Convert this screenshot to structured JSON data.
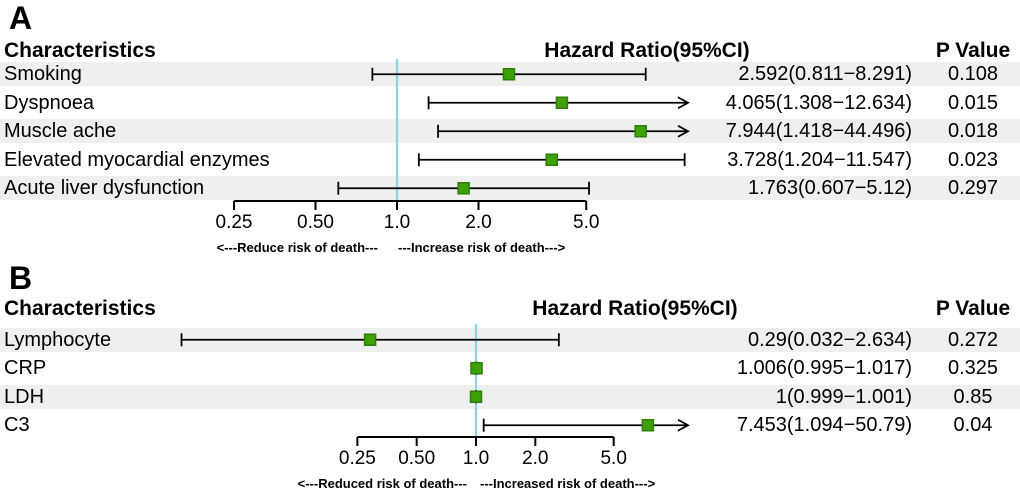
{
  "colors": {
    "marker_fill": "#3fa108",
    "marker_stroke": "#2e7d06",
    "reference_line": "#8ed3e4",
    "stripe": "#efefef",
    "line": "#000000",
    "background": "#ffffff",
    "text": "#000000"
  },
  "panels": [
    {
      "letter": "A",
      "columns": {
        "characteristics": "Characteristics",
        "hazard_ratio": "Hazard Ratio(95%CI)",
        "p_value": "P Value"
      },
      "rows": [
        {
          "name": "Smoking",
          "hr": 2.592,
          "lo": 0.811,
          "hi": 8.291,
          "hr_text": "2.592(0.811−8.291)",
          "p": "0.108"
        },
        {
          "name": "Dyspnoea",
          "hr": 4.065,
          "lo": 1.308,
          "hi": 12.634,
          "hr_text": "4.065(1.308−12.634)",
          "p": "0.015"
        },
        {
          "name": "Muscle ache",
          "hr": 7.944,
          "lo": 1.418,
          "hi": 44.496,
          "hr_text": "7.944(1.418−44.496)",
          "p": "0.018"
        },
        {
          "name": "Elevated myocardial enzymes",
          "hr": 3.728,
          "lo": 1.204,
          "hi": 11.547,
          "hr_text": "3.728(1.204−11.547)",
          "p": "0.023"
        },
        {
          "name": "Acute liver dysfunction",
          "hr": 1.763,
          "lo": 0.607,
          "hi": 5.12,
          "hr_text": "1.763(0.607−5.12)",
          "p": "0.297"
        }
      ],
      "axis": {
        "tick_labels": [
          "0.25",
          "0.50",
          "1.0",
          "2.0",
          "5.0"
        ],
        "tick_values": [
          0.25,
          0.5,
          1,
          2,
          5
        ]
      },
      "footer_left": "<---Reduce risk of death---",
      "footer_right": "---Increase risk of death--->"
    },
    {
      "letter": "B",
      "columns": {
        "characteristics": "Characteristics",
        "hazard_ratio": "Hazard Ratio(95%CI)",
        "p_value": "P Value"
      },
      "rows": [
        {
          "name": "Lymphocyte",
          "hr": 0.29,
          "lo": 0.032,
          "hi": 2.634,
          "hr_text": "0.29(0.032−2.634)",
          "p": "0.272"
        },
        {
          "name": "CRP",
          "hr": 1.006,
          "lo": 0.995,
          "hi": 1.017,
          "hr_text": "1.006(0.995−1.017)",
          "p": "0.325"
        },
        {
          "name": "LDH",
          "hr": 1,
          "lo": 0.999,
          "hi": 1.001,
          "hr_text": "1(0.999−1.001)",
          "p": "0.85"
        },
        {
          "name": "C3",
          "hr": 7.453,
          "lo": 1.094,
          "hi": 50.79,
          "hr_text": "7.453(1.094−50.79)",
          "p": "0.04"
        }
      ],
      "axis": {
        "tick_labels": [
          "0.25",
          "0.50",
          "1.0",
          "2.0",
          "5.0"
        ],
        "tick_values": [
          0.25,
          0.5,
          1,
          2,
          5
        ]
      },
      "footer_left": "<---Reduced risk of death---",
      "footer_right": "---Increased risk of death--->"
    }
  ],
  "chart_data": [
    {
      "type": "scatter",
      "subtype": "forest-plot",
      "title": "A",
      "categories": [
        "Smoking",
        "Dyspnoea",
        "Muscle ache",
        "Elevated myocardial enzymes",
        "Acute liver dysfunction"
      ],
      "series": [
        {
          "name": "Hazard Ratio",
          "values": [
            2.592,
            4.065,
            7.944,
            3.728,
            1.763
          ],
          "ci_lower": [
            0.811,
            1.308,
            1.418,
            1.204,
            0.607
          ],
          "ci_upper": [
            8.291,
            12.634,
            44.496,
            11.547,
            5.12
          ]
        }
      ],
      "p_values": [
        0.108,
        0.015,
        0.018,
        0.023,
        0.297
      ],
      "x_scale": "log",
      "x_ticks": [
        0.25,
        0.5,
        1.0,
        2.0,
        5.0
      ],
      "reference_line": 1.0,
      "xlabel": "<---Reduce risk of death---   ---Increase risk of death--->",
      "legend": "none",
      "grid": false
    },
    {
      "type": "scatter",
      "subtype": "forest-plot",
      "title": "B",
      "categories": [
        "Lymphocyte",
        "CRP",
        "LDH",
        "C3"
      ],
      "series": [
        {
          "name": "Hazard Ratio",
          "values": [
            0.29,
            1.006,
            1,
            7.453
          ],
          "ci_lower": [
            0.032,
            0.995,
            0.999,
            1.094
          ],
          "ci_upper": [
            2.634,
            1.017,
            1.001,
            50.79
          ]
        }
      ],
      "p_values": [
        0.272,
        0.325,
        0.85,
        0.04
      ],
      "x_scale": "log",
      "x_ticks": [
        0.25,
        0.5,
        1.0,
        2.0,
        5.0
      ],
      "reference_line": 1.0,
      "xlabel": "<---Reduced risk of death---   ---Increased risk of death--->",
      "legend": "none",
      "grid": false
    }
  ]
}
